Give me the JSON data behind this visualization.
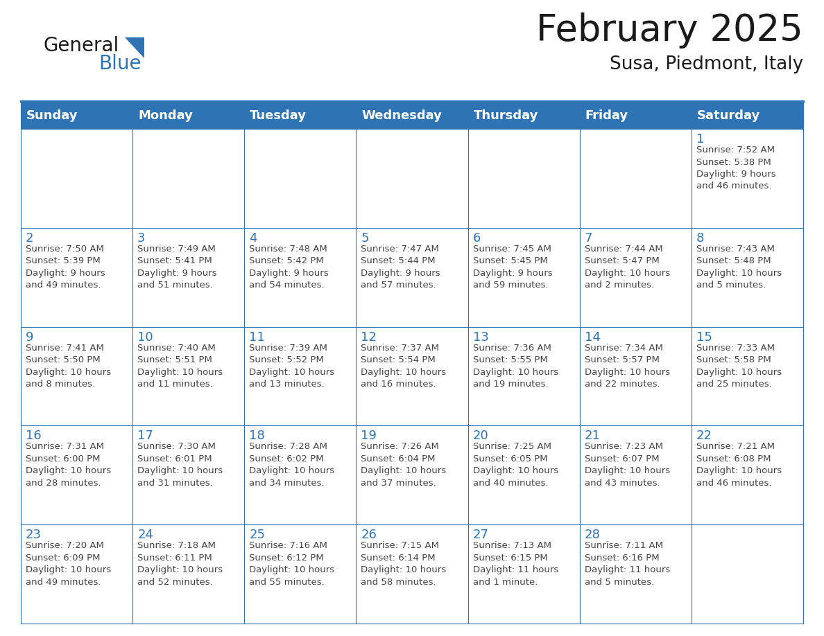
{
  "title": "February 2025",
  "subtitle": "Susa, Piedmont, Italy",
  "header_bg": "#2E74B5",
  "header_text_color": "#FFFFFF",
  "cell_bg": "#FFFFFF",
  "cell_text_color": "#444444",
  "day_num_color": "#2E74B5",
  "border_color": "#2E74B5",
  "separator_color": "#3A7DC9",
  "days_of_week": [
    "Sunday",
    "Monday",
    "Tuesday",
    "Wednesday",
    "Thursday",
    "Friday",
    "Saturday"
  ],
  "weeks": [
    [
      {
        "day": "",
        "info": ""
      },
      {
        "day": "",
        "info": ""
      },
      {
        "day": "",
        "info": ""
      },
      {
        "day": "",
        "info": ""
      },
      {
        "day": "",
        "info": ""
      },
      {
        "day": "",
        "info": ""
      },
      {
        "day": "1",
        "info": "Sunrise: 7:52 AM\nSunset: 5:38 PM\nDaylight: 9 hours\nand 46 minutes."
      }
    ],
    [
      {
        "day": "2",
        "info": "Sunrise: 7:50 AM\nSunset: 5:39 PM\nDaylight: 9 hours\nand 49 minutes."
      },
      {
        "day": "3",
        "info": "Sunrise: 7:49 AM\nSunset: 5:41 PM\nDaylight: 9 hours\nand 51 minutes."
      },
      {
        "day": "4",
        "info": "Sunrise: 7:48 AM\nSunset: 5:42 PM\nDaylight: 9 hours\nand 54 minutes."
      },
      {
        "day": "5",
        "info": "Sunrise: 7:47 AM\nSunset: 5:44 PM\nDaylight: 9 hours\nand 57 minutes."
      },
      {
        "day": "6",
        "info": "Sunrise: 7:45 AM\nSunset: 5:45 PM\nDaylight: 9 hours\nand 59 minutes."
      },
      {
        "day": "7",
        "info": "Sunrise: 7:44 AM\nSunset: 5:47 PM\nDaylight: 10 hours\nand 2 minutes."
      },
      {
        "day": "8",
        "info": "Sunrise: 7:43 AM\nSunset: 5:48 PM\nDaylight: 10 hours\nand 5 minutes."
      }
    ],
    [
      {
        "day": "9",
        "info": "Sunrise: 7:41 AM\nSunset: 5:50 PM\nDaylight: 10 hours\nand 8 minutes."
      },
      {
        "day": "10",
        "info": "Sunrise: 7:40 AM\nSunset: 5:51 PM\nDaylight: 10 hours\nand 11 minutes."
      },
      {
        "day": "11",
        "info": "Sunrise: 7:39 AM\nSunset: 5:52 PM\nDaylight: 10 hours\nand 13 minutes."
      },
      {
        "day": "12",
        "info": "Sunrise: 7:37 AM\nSunset: 5:54 PM\nDaylight: 10 hours\nand 16 minutes."
      },
      {
        "day": "13",
        "info": "Sunrise: 7:36 AM\nSunset: 5:55 PM\nDaylight: 10 hours\nand 19 minutes."
      },
      {
        "day": "14",
        "info": "Sunrise: 7:34 AM\nSunset: 5:57 PM\nDaylight: 10 hours\nand 22 minutes."
      },
      {
        "day": "15",
        "info": "Sunrise: 7:33 AM\nSunset: 5:58 PM\nDaylight: 10 hours\nand 25 minutes."
      }
    ],
    [
      {
        "day": "16",
        "info": "Sunrise: 7:31 AM\nSunset: 6:00 PM\nDaylight: 10 hours\nand 28 minutes."
      },
      {
        "day": "17",
        "info": "Sunrise: 7:30 AM\nSunset: 6:01 PM\nDaylight: 10 hours\nand 31 minutes."
      },
      {
        "day": "18",
        "info": "Sunrise: 7:28 AM\nSunset: 6:02 PM\nDaylight: 10 hours\nand 34 minutes."
      },
      {
        "day": "19",
        "info": "Sunrise: 7:26 AM\nSunset: 6:04 PM\nDaylight: 10 hours\nand 37 minutes."
      },
      {
        "day": "20",
        "info": "Sunrise: 7:25 AM\nSunset: 6:05 PM\nDaylight: 10 hours\nand 40 minutes."
      },
      {
        "day": "21",
        "info": "Sunrise: 7:23 AM\nSunset: 6:07 PM\nDaylight: 10 hours\nand 43 minutes."
      },
      {
        "day": "22",
        "info": "Sunrise: 7:21 AM\nSunset: 6:08 PM\nDaylight: 10 hours\nand 46 minutes."
      }
    ],
    [
      {
        "day": "23",
        "info": "Sunrise: 7:20 AM\nSunset: 6:09 PM\nDaylight: 10 hours\nand 49 minutes."
      },
      {
        "day": "24",
        "info": "Sunrise: 7:18 AM\nSunset: 6:11 PM\nDaylight: 10 hours\nand 52 minutes."
      },
      {
        "day": "25",
        "info": "Sunrise: 7:16 AM\nSunset: 6:12 PM\nDaylight: 10 hours\nand 55 minutes."
      },
      {
        "day": "26",
        "info": "Sunrise: 7:15 AM\nSunset: 6:14 PM\nDaylight: 10 hours\nand 58 minutes."
      },
      {
        "day": "27",
        "info": "Sunrise: 7:13 AM\nSunset: 6:15 PM\nDaylight: 11 hours\nand 1 minute."
      },
      {
        "day": "28",
        "info": "Sunrise: 7:11 AM\nSunset: 6:16 PM\nDaylight: 11 hours\nand 5 minutes."
      },
      {
        "day": "",
        "info": ""
      }
    ]
  ],
  "logo_color_general": "#1a1a1a",
  "logo_color_blue": "#2E74B5",
  "logo_triangle_color": "#2E74B5",
  "title_fontsize": 38,
  "subtitle_fontsize": 19,
  "header_fontsize": 13,
  "day_num_fontsize": 13,
  "info_fontsize": 9.5,
  "fig_width": 11.88,
  "fig_height": 9.18,
  "dpi": 100
}
